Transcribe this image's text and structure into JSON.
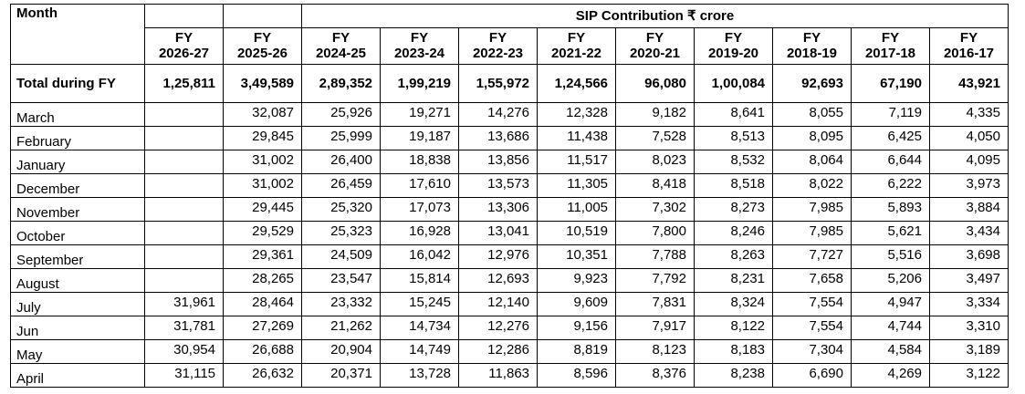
{
  "table": {
    "month_header": "Month",
    "group_header": "SIP Contribution ₹ crore",
    "fy_columns": [
      {
        "line1": "FY",
        "line2": "2026-27"
      },
      {
        "line1": "FY",
        "line2": "2025-26"
      },
      {
        "line1": "FY",
        "line2": "2024-25"
      },
      {
        "line1": "FY",
        "line2": "2023-24"
      },
      {
        "line1": "FY",
        "line2": "2022-23"
      },
      {
        "line1": "FY",
        "line2": "2021-22"
      },
      {
        "line1": "FY",
        "line2": "2020-21"
      },
      {
        "line1": "FY",
        "line2": "2019-20"
      },
      {
        "line1": "FY",
        "line2": "2018-19"
      },
      {
        "line1": "FY",
        "line2": "2017-18"
      },
      {
        "line1": "FY",
        "line2": "2016-17"
      }
    ],
    "total_row": {
      "label": "Total during FY",
      "values": [
        "1,25,811",
        "3,49,589",
        "2,89,352",
        "1,99,219",
        "1,55,972",
        "1,24,566",
        "96,080",
        "1,00,084",
        "92,693",
        "67,190",
        "43,921"
      ]
    },
    "rows": [
      {
        "month": "March",
        "values": [
          "",
          "32,087",
          "25,926",
          "19,271",
          "14,276",
          "12,328",
          "9,182",
          "8,641",
          "8,055",
          "7,119",
          "4,335"
        ]
      },
      {
        "month": "February",
        "values": [
          "",
          "29,845",
          "25,999",
          "19,187",
          "13,686",
          "11,438",
          "7,528",
          "8,513",
          "8,095",
          "6,425",
          "4,050"
        ]
      },
      {
        "month": "January",
        "values": [
          "",
          "31,002",
          "26,400",
          "18,838",
          "13,856",
          "11,517",
          "8,023",
          "8,532",
          "8,064",
          "6,644",
          "4,095"
        ]
      },
      {
        "month": "December",
        "values": [
          "",
          "31,002",
          "26,459",
          "17,610",
          "13,573",
          "11,305",
          "8,418",
          "8,518",
          "8,022",
          "6,222",
          "3,973"
        ]
      },
      {
        "month": "November",
        "values": [
          "",
          "29,445",
          "25,320",
          "17,073",
          "13,306",
          "11,005",
          "7,302",
          "8,273",
          "7,985",
          "5,893",
          "3,884"
        ]
      },
      {
        "month": "October",
        "values": [
          "",
          "29,529",
          "25,323",
          "16,928",
          "13,041",
          "10,519",
          "7,800",
          "8,246",
          "7,985",
          "5,621",
          "3,434"
        ]
      },
      {
        "month": "September",
        "values": [
          "",
          "29,361",
          "24,509",
          "16,042",
          "12,976",
          "10,351",
          "7,788",
          "8,263",
          "7,727",
          "5,516",
          "3,698"
        ]
      },
      {
        "month": "August",
        "values": [
          "",
          "28,265",
          "23,547",
          "15,814",
          "12,693",
          "9,923",
          "7,792",
          "8,231",
          "7,658",
          "5,206",
          "3,497"
        ]
      },
      {
        "month": "July",
        "values": [
          "31,961",
          "28,464",
          "23,332",
          "15,245",
          "12,140",
          "9,609",
          "7,831",
          "8,324",
          "7,554",
          "4,947",
          "3,334"
        ]
      },
      {
        "month": "Jun",
        "values": [
          "31,781",
          "27,269",
          "21,262",
          "14,734",
          "12,276",
          "9,156",
          "7,917",
          "8,122",
          "7,554",
          "4,744",
          "3,310"
        ]
      },
      {
        "month": "May",
        "values": [
          "30,954",
          "26,688",
          "20,904",
          "14,749",
          "12,286",
          "8,819",
          "8,123",
          "8,183",
          "7,304",
          "4,584",
          "3,189"
        ]
      },
      {
        "month": "April",
        "values": [
          "31,115",
          "26,632",
          "20,371",
          "13,728",
          "11,863",
          "8,596",
          "8,376",
          "8,238",
          "6,690",
          "4,269",
          "3,122"
        ]
      }
    ]
  }
}
